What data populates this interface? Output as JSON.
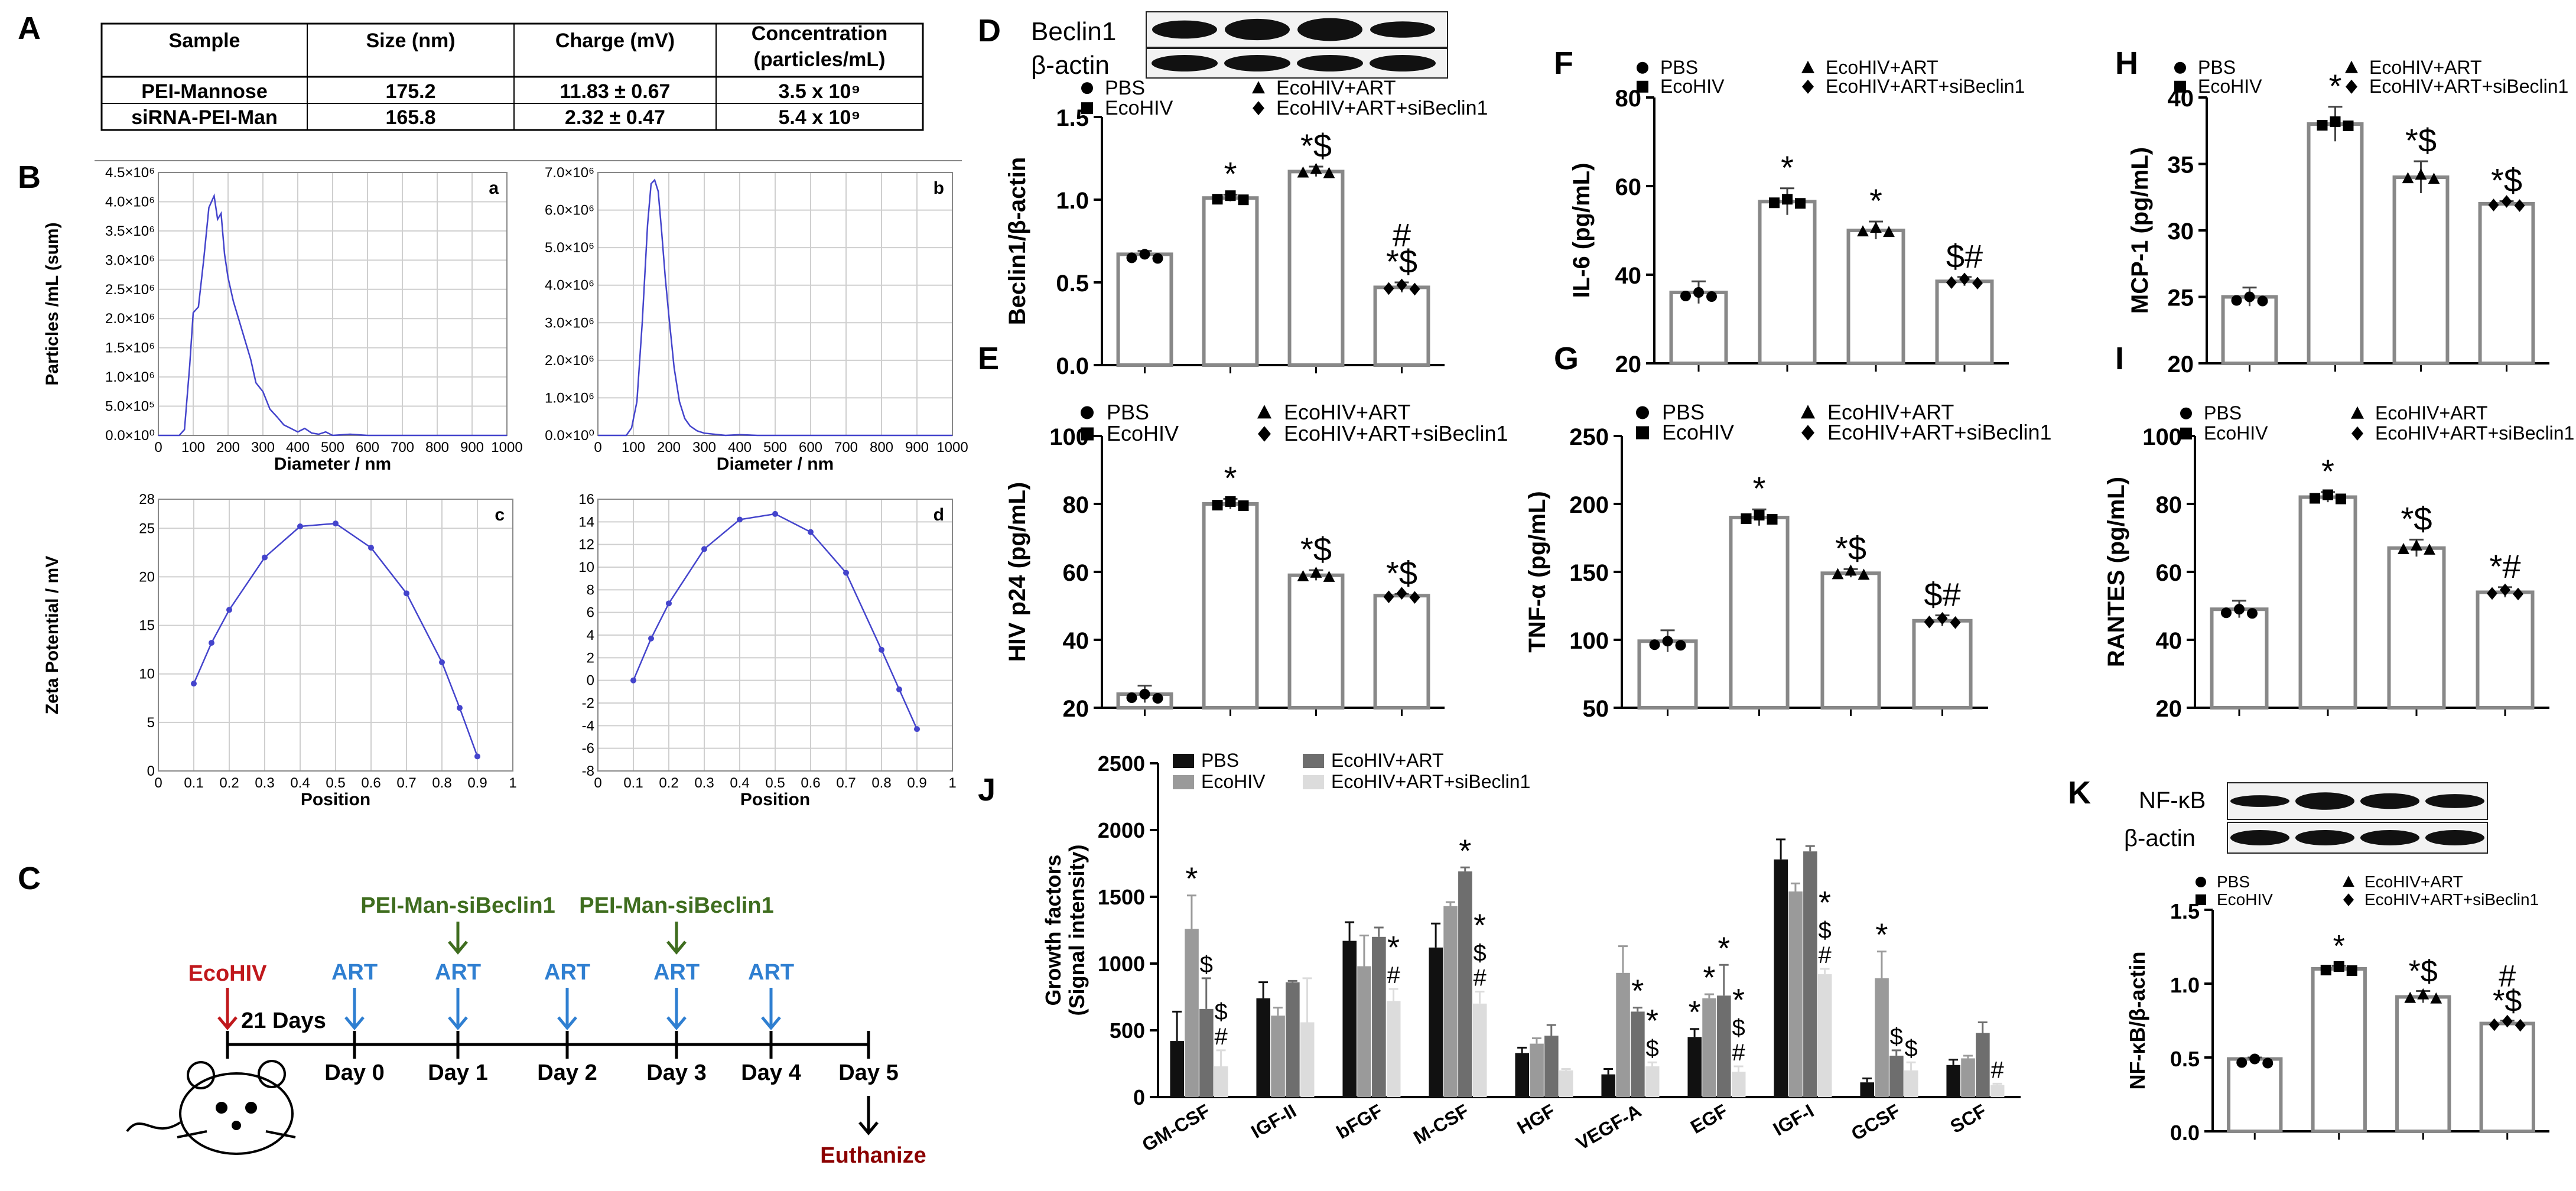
{
  "panel_labels": {
    "A": "A",
    "B": "B",
    "C": "C",
    "D": "D",
    "E": "E",
    "F": "F",
    "G": "G",
    "H": "H",
    "I": "I",
    "J": "J",
    "K": "K"
  },
  "table": {
    "headers": [
      "Sample",
      "Size (nm)",
      "Charge (mV)",
      "Concentration (particles/mL)"
    ],
    "rows": [
      [
        "PEI-Mannose",
        "175.2",
        "11.83 ± 0.67",
        "3.5 x 10⁹"
      ],
      [
        "siRNA-PEI-Man",
        "165.8",
        "2.32 ± 0.47",
        "5.4 x 10⁹"
      ]
    ]
  },
  "legend_labels": [
    "PBS",
    "EcoHIV",
    "EcoHIV+ART",
    "EcoHIV+ART+siBeclin1"
  ],
  "groups": [
    "PBS",
    "EcoHIV",
    "EcoHIV+ART",
    "EcoHIV+ART+siBeclin1"
  ],
  "timeline": {
    "infection": "EcoHIV",
    "interval": "21 Days",
    "treatment": "ART",
    "sirna": "PEI-Man-siBeclin1",
    "days": [
      "Day 0",
      "Day 1",
      "Day 2",
      "Day 3",
      "Day 4",
      "Day 5"
    ],
    "end": "Euthanize"
  },
  "colors": {
    "infection": "#c0181c",
    "art": "#2f7fd1",
    "sirna": "#3f6d1f",
    "end": "#8b0000",
    "trace": "#4444cc",
    "bar_stroke": "#888888"
  },
  "chart_data": [
    {
      "panel": "B",
      "sub": "a",
      "type": "line",
      "xlabel": "Diameter / nm",
      "ylabel": "Particles /mL (sum)",
      "xlim": [
        0,
        1000
      ],
      "ylim": [
        0,
        4500000
      ],
      "xticks": [
        "0",
        "100",
        "200",
        "300",
        "400",
        "500",
        "600",
        "700",
        "800",
        "900",
        "1000"
      ],
      "yticks": [
        "0.0×10⁰",
        "5.0×10⁵",
        "1.0×10⁶",
        "1.5×10⁶",
        "2.0×10⁶",
        "2.5×10⁶",
        "3.0×10⁶",
        "3.5×10⁶",
        "4.0×10⁶",
        "4.5×10⁶"
      ],
      "x": [
        0,
        60,
        75,
        90,
        100,
        115,
        130,
        145,
        160,
        170,
        180,
        190,
        200,
        215,
        230,
        250,
        265,
        280,
        300,
        320,
        340,
        360,
        380,
        400,
        420,
        440,
        460,
        480,
        500,
        550,
        600,
        700,
        1000
      ],
      "y": [
        0,
        0,
        100000,
        1200000,
        2100000,
        2200000,
        3000000,
        3900000,
        4100000,
        3700000,
        3800000,
        3100000,
        2700000,
        2300000,
        2000000,
        1600000,
        1300000,
        900000,
        750000,
        450000,
        320000,
        180000,
        120000,
        60000,
        120000,
        40000,
        20000,
        60000,
        0,
        20000,
        0,
        0,
        0
      ]
    },
    {
      "panel": "B",
      "sub": "b",
      "type": "line",
      "xlabel": "Diameter / nm",
      "xlim": [
        0,
        1000
      ],
      "ylim": [
        0,
        7000000
      ],
      "xticks": [
        "0",
        "100",
        "200",
        "300",
        "400",
        "500",
        "600",
        "700",
        "800",
        "900",
        "1000"
      ],
      "yticks": [
        "0.0×10⁰",
        "1.0×10⁶",
        "2.0×10⁶",
        "3.0×10⁶",
        "4.0×10⁶",
        "5.0×10⁶",
        "6.0×10⁶",
        "7.0×10⁶"
      ],
      "x": [
        0,
        80,
        95,
        110,
        125,
        140,
        150,
        160,
        170,
        180,
        190,
        200,
        215,
        230,
        245,
        260,
        280,
        300,
        330,
        360,
        400,
        450,
        500,
        600,
        1000
      ],
      "y": [
        0,
        0,
        200000,
        900000,
        3000000,
        5600000,
        6700000,
        6800000,
        6500000,
        5400000,
        4200000,
        3200000,
        1800000,
        900000,
        450000,
        250000,
        120000,
        60000,
        30000,
        0,
        20000,
        0,
        0,
        0,
        0
      ]
    },
    {
      "panel": "B",
      "sub": "c",
      "type": "line",
      "xlabel": "Position",
      "ylabel": "Zeta Potential / mV",
      "xlim": [
        0,
        1
      ],
      "ylim": [
        0,
        28
      ],
      "xticks": [
        "0",
        "0.1",
        "0.2",
        "0.3",
        "0.4",
        "0.5",
        "0.6",
        "0.7",
        "0.8",
        "0.9",
        "1"
      ],
      "yticks": [
        "0",
        "5",
        "10",
        "15",
        "20",
        "25",
        "28"
      ],
      "x": [
        0.1,
        0.15,
        0.2,
        0.3,
        0.4,
        0.5,
        0.6,
        0.7,
        0.8,
        0.85,
        0.9
      ],
      "y": [
        9,
        13.2,
        16.6,
        22,
        25.2,
        25.5,
        23,
        18.3,
        11.2,
        6.5,
        1.5
      ]
    },
    {
      "panel": "B",
      "sub": "d",
      "type": "line",
      "xlabel": "Position",
      "xlim": [
        0,
        1
      ],
      "ylim": [
        -8,
        16
      ],
      "xticks": [
        "0",
        "0.1",
        "0.2",
        "0.3",
        "0.4",
        "0.5",
        "0.6",
        "0.7",
        "0.8",
        "0.9",
        "1"
      ],
      "yticks": [
        "-8",
        "-6",
        "-4",
        "-2",
        "0",
        "2",
        "4",
        "6",
        "8",
        "10",
        "12",
        "14",
        "16"
      ],
      "x": [
        0.1,
        0.15,
        0.2,
        0.3,
        0.4,
        0.5,
        0.6,
        0.7,
        0.8,
        0.85,
        0.9
      ],
      "y": [
        0,
        3.7,
        6.8,
        11.6,
        14.2,
        14.7,
        13.1,
        9.5,
        2.7,
        -0.8,
        -4.3
      ]
    },
    {
      "panel": "D",
      "type": "bar",
      "ylabel": "Beclin1/β-actin",
      "ylim": [
        0,
        1.5
      ],
      "yticks": [
        "0.0",
        "0.5",
        "1.0",
        "1.5"
      ],
      "values": [
        0.67,
        1.01,
        1.17,
        0.47
      ],
      "errors": [
        0.02,
        0.02,
        0.03,
        0.03
      ],
      "marks": [
        "",
        "*",
        "*$",
        "*$#"
      ],
      "blot": [
        "Beclin1",
        "β-actin"
      ]
    },
    {
      "panel": "E",
      "type": "bar",
      "ylabel": "HIV p24 (pg/mL)",
      "ylim": [
        20,
        100
      ],
      "yticks": [
        "20",
        "40",
        "60",
        "80",
        "100"
      ],
      "values": [
        24,
        80,
        59,
        53
      ],
      "errors": [
        2.5,
        1.5,
        1.5,
        0.5
      ],
      "marks": [
        "",
        "*",
        "*$",
        "*$"
      ]
    },
    {
      "panel": "F",
      "type": "bar",
      "ylabel": "IL-6 (pg/mL)",
      "ylim": [
        20,
        80
      ],
      "yticks": [
        "20",
        "40",
        "60",
        "80"
      ],
      "values": [
        36,
        56.5,
        50,
        38.5
      ],
      "errors": [
        2.5,
        3,
        2,
        1
      ],
      "marks": [
        "",
        "*",
        "*",
        "$#"
      ]
    },
    {
      "panel": "G",
      "type": "bar",
      "ylabel": "TNF-α (pg/mL)",
      "ylim": [
        50,
        250
      ],
      "yticks": [
        "50",
        "100",
        "150",
        "200",
        "250"
      ],
      "values": [
        99,
        190,
        149,
        114
      ],
      "errors": [
        8,
        6,
        3,
        4
      ],
      "marks": [
        "",
        "*",
        "*$",
        "$#"
      ]
    },
    {
      "panel": "H",
      "type": "bar",
      "ylabel": "MCP-1 (pg/mL)",
      "ylim": [
        20,
        40
      ],
      "yticks": [
        "20",
        "25",
        "30",
        "35",
        "40"
      ],
      "values": [
        25,
        38,
        34,
        32
      ],
      "errors": [
        0.7,
        1.3,
        1.2,
        0.2
      ],
      "marks": [
        "",
        "*",
        "*$",
        "*$"
      ]
    },
    {
      "panel": "I",
      "type": "bar",
      "ylabel": "RANTES (pg/mL)",
      "ylim": [
        20,
        100
      ],
      "yticks": [
        "20",
        "40",
        "60",
        "80",
        "100"
      ],
      "values": [
        49,
        82,
        67,
        54
      ],
      "errors": [
        2.5,
        1.5,
        2.5,
        1.5
      ],
      "marks": [
        "",
        "*",
        "*$",
        "*#"
      ]
    },
    {
      "panel": "J",
      "type": "bar",
      "ylabel": "Growth factors (Signal intensity)",
      "ylim": [
        0,
        2500
      ],
      "yticks": [
        "0",
        "500",
        "1000",
        "1500",
        "2000",
        "2500"
      ],
      "categories": [
        "GM-CSF",
        "IGF-II",
        "bFGF",
        "M-CSF",
        "HGF",
        "VEGF-A",
        "EGF",
        "IGF-I",
        "GCSF",
        "SCF"
      ],
      "series": [
        {
          "name": "PBS",
          "values": [
            420,
            740,
            1170,
            1120,
            330,
            170,
            450,
            1780,
            110,
            240
          ],
          "errors": [
            220,
            120,
            140,
            180,
            40,
            40,
            60,
            150,
            30,
            40
          ],
          "marks": [
            "",
            "",
            "",
            "",
            "",
            "",
            "*",
            "",
            "",
            ""
          ]
        },
        {
          "name": "EcoHIV",
          "values": [
            1260,
            610,
            980,
            1430,
            400,
            930,
            740,
            1540,
            890,
            290
          ],
          "errors": [
            250,
            60,
            230,
            30,
            40,
            200,
            30,
            60,
            200,
            20
          ],
          "marks": [
            "*",
            "",
            "",
            "",
            "",
            "",
            "*",
            "",
            "*",
            ""
          ]
        },
        {
          "name": "EcoHIV+ART",
          "values": [
            660,
            860,
            1200,
            1690,
            460,
            640,
            760,
            1840,
            310,
            480
          ],
          "errors": [
            230,
            10,
            70,
            30,
            80,
            30,
            230,
            40,
            40,
            80
          ],
          "marks": [
            "$",
            "",
            "",
            "*",
            "",
            "*",
            "*",
            "",
            "$",
            ""
          ]
        },
        {
          "name": "EcoHIV+ART+siBeclin1",
          "values": [
            230,
            560,
            720,
            700,
            200,
            230,
            190,
            920,
            200,
            90
          ],
          "errors": [
            120,
            330,
            90,
            90,
            10,
            30,
            40,
            40,
            60,
            10
          ],
          "marks": [
            "#$",
            "",
            "#*",
            "#$*",
            "",
            "$*",
            "#$*",
            "#$*",
            "$",
            "#"
          ]
        }
      ]
    },
    {
      "panel": "K",
      "type": "bar",
      "ylabel": "NF-κB/β-actin",
      "ylim": [
        0,
        1.5
      ],
      "yticks": [
        "0.0",
        "0.5",
        "1.0",
        "1.5"
      ],
      "values": [
        0.49,
        1.1,
        0.91,
        0.73
      ],
      "errors": [
        0.01,
        0.02,
        0.04,
        0.02
      ],
      "marks": [
        "",
        "*",
        "*$",
        "*$#"
      ],
      "blot": [
        "NF-κB",
        "β-actin"
      ]
    }
  ]
}
